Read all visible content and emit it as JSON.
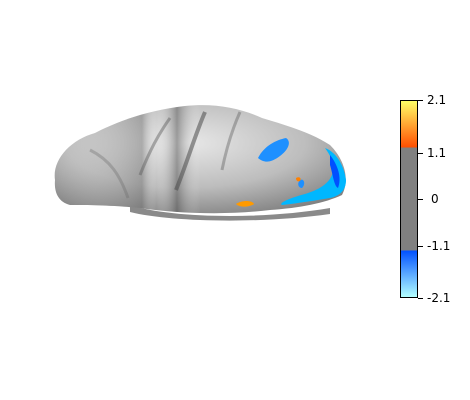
{
  "figure": {
    "colorbar": {
      "ticks": [
        "2.1",
        "1.1",
        "0",
        "-1.1",
        "-2.1"
      ],
      "range": [
        -2.1,
        2.1
      ],
      "threshold": 1.1,
      "colors": {
        "positive_high": "#ffff66",
        "positive_low": "#ff4d00",
        "neutral": "#808080",
        "negative_low": "#0050ff",
        "negative_high": "#b3ffff"
      }
    }
  }
}
